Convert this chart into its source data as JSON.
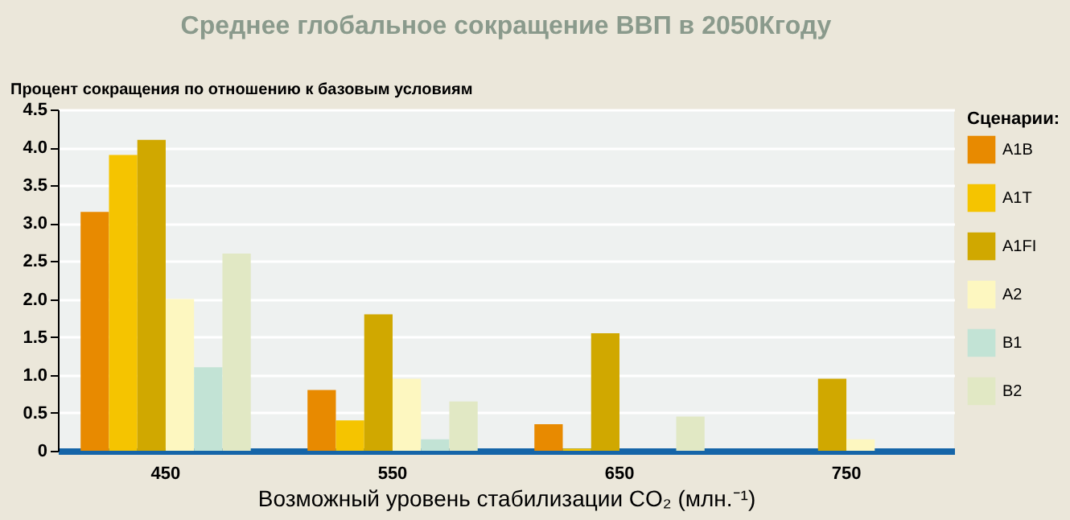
{
  "chart_data": {
    "type": "bar",
    "title": "Среднее глобальное сокращение ВВП в 2050Кгоду",
    "ylabel": "Процент сокращения по отношению к базовым условиям",
    "xlabel": "Возможный уровень стабилизации CO₂ (млн.⁻¹)",
    "legend_title": "Сценарии:",
    "categories": [
      "450",
      "550",
      "650",
      "750"
    ],
    "series": [
      {
        "name": "A1B",
        "color": "#e88a00",
        "values": [
          3.15,
          0.8,
          0.35,
          null
        ]
      },
      {
        "name": "A1T",
        "color": "#f5c400",
        "values": [
          3.9,
          0.4,
          0.03,
          null
        ]
      },
      {
        "name": "A1FI",
        "color": "#d0a800",
        "values": [
          4.1,
          1.8,
          1.55,
          0.95
        ]
      },
      {
        "name": "A2",
        "color": "#fdf7c0",
        "values": [
          2.0,
          0.95,
          null,
          0.15
        ]
      },
      {
        "name": "B1",
        "color": "#c2e3d5",
        "values": [
          1.1,
          0.15,
          null,
          null
        ]
      },
      {
        "name": "B2",
        "color": "#e1e8c4",
        "values": [
          2.6,
          0.65,
          0.45,
          null
        ]
      }
    ],
    "ylim": [
      0,
      4.5
    ],
    "yticks": [
      0,
      {
        "value": 0.5,
        "label": "0.5"
      },
      {
        "value": 1,
        "label": "1.0"
      },
      {
        "value": 1.5,
        "label": "1.5"
      },
      {
        "value": 2,
        "label": "2.0"
      },
      {
        "value": 2.5,
        "label": "2.5"
      },
      {
        "value": 3,
        "label": "3.0"
      },
      {
        "value": 3.5,
        "label": "3.5"
      },
      {
        "value": 4,
        "label": "4.0"
      },
      {
        "value": 4.5,
        "label": "4.5"
      }
    ],
    "grid": "y",
    "legend": "right"
  }
}
